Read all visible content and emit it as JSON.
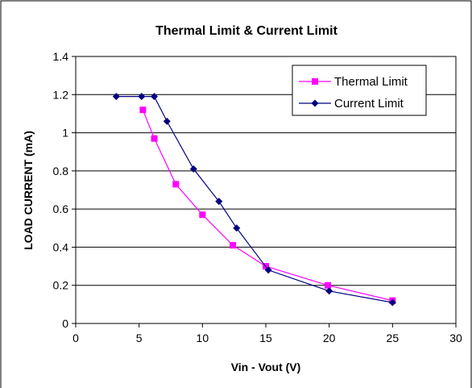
{
  "chart_data": {
    "type": "line",
    "title": "Thermal Limit & Current Limit",
    "xlabel": "Vin - Vout (V)",
    "ylabel": "LOAD CURRENT (mA)",
    "xlim": [
      0,
      30
    ],
    "ylim": [
      0,
      1.4
    ],
    "xticks": [
      0,
      5,
      10,
      15,
      20,
      25,
      30
    ],
    "yticks": [
      0,
      0.2,
      0.4,
      0.6,
      0.8,
      1,
      1.2,
      1.4
    ],
    "xtick_labels": [
      "0",
      "5",
      "10",
      "15",
      "20",
      "25",
      "30"
    ],
    "ytick_labels": [
      "0",
      "0.2",
      "0.4",
      "0.6",
      "0.8",
      "1",
      "1.2",
      "1.4"
    ],
    "grid": "horizontal",
    "legend_position": "top-right",
    "series": [
      {
        "name": "Thermal Limit",
        "color": "#ff00ff",
        "marker": "square",
        "x": [
          5.3,
          6.2,
          7.9,
          10.0,
          12.4,
          15.0,
          19.9,
          25.0
        ],
        "y": [
          1.12,
          0.97,
          0.73,
          0.57,
          0.41,
          0.3,
          0.2,
          0.12
        ]
      },
      {
        "name": "Current Limit",
        "color": "#000080",
        "marker": "diamond",
        "x": [
          3.2,
          5.2,
          6.2,
          7.2,
          9.3,
          11.3,
          12.7,
          15.2,
          20.0,
          25.0
        ],
        "y": [
          1.19,
          1.19,
          1.19,
          1.06,
          0.81,
          0.64,
          0.5,
          0.28,
          0.17,
          0.11
        ]
      }
    ]
  }
}
